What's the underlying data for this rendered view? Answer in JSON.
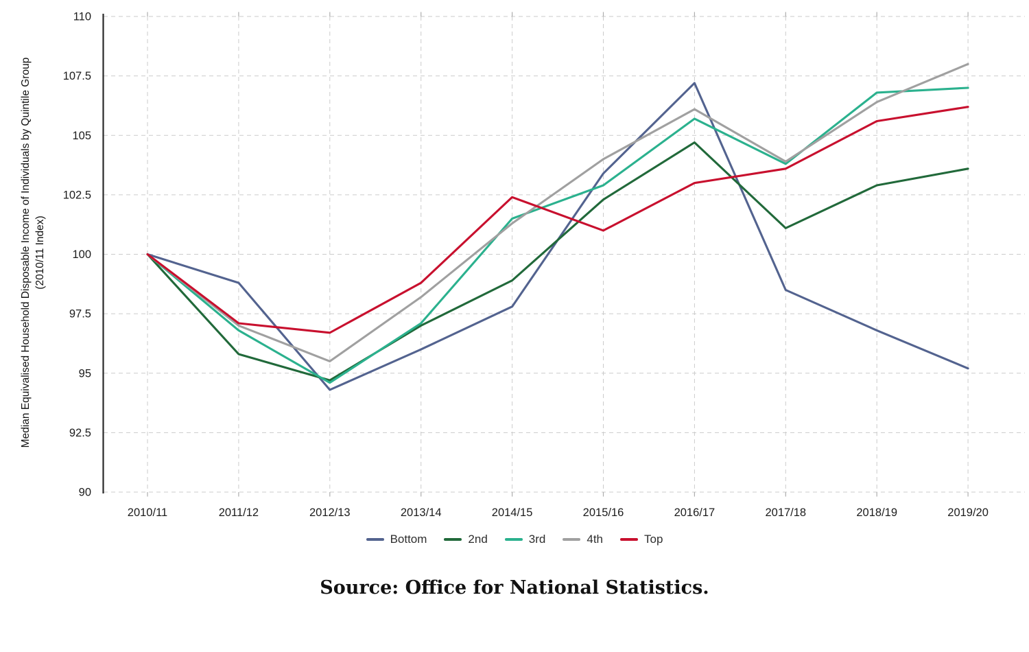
{
  "chart_data": {
    "type": "line",
    "categories": [
      "2010/11",
      "2011/12",
      "2012/13",
      "2013/14",
      "2014/15",
      "2015/16",
      "2016/17",
      "2017/18",
      "2018/19",
      "2019/20"
    ],
    "series": [
      {
        "name": "Bottom",
        "color": "#53638f",
        "values": [
          100,
          98.8,
          94.3,
          96.0,
          97.8,
          103.4,
          107.2,
          98.5,
          96.8,
          95.2
        ]
      },
      {
        "name": "2nd",
        "color": "#21693a",
        "values": [
          100,
          95.8,
          94.7,
          97.0,
          98.9,
          102.3,
          104.7,
          101.1,
          102.9,
          103.6
        ]
      },
      {
        "name": "3rd",
        "color": "#2bb18e",
        "values": [
          100,
          96.8,
          94.6,
          97.1,
          101.5,
          102.9,
          105.7,
          103.8,
          106.8,
          107.0
        ]
      },
      {
        "name": "4th",
        "color": "#a0a0a0",
        "values": [
          100,
          97.0,
          95.5,
          98.2,
          101.3,
          104.0,
          106.1,
          103.9,
          106.4,
          108.0
        ]
      },
      {
        "name": "Top",
        "color": "#c8102e",
        "values": [
          100,
          97.1,
          96.7,
          98.8,
          102.4,
          101.0,
          103.0,
          103.6,
          105.6,
          106.2
        ]
      }
    ],
    "ylabel_line1": "Median Equivalised Household Disposable Income of Individuals by Quintile Group",
    "ylabel_line2": "(2010/11 Index)",
    "ylim": [
      90,
      110
    ],
    "yticks": [
      90,
      92.5,
      95,
      97.5,
      100,
      102.5,
      105,
      107.5,
      110
    ],
    "grid": "dashed",
    "legend_position": "bottom"
  },
  "source": "Source: Office for National Statistics."
}
